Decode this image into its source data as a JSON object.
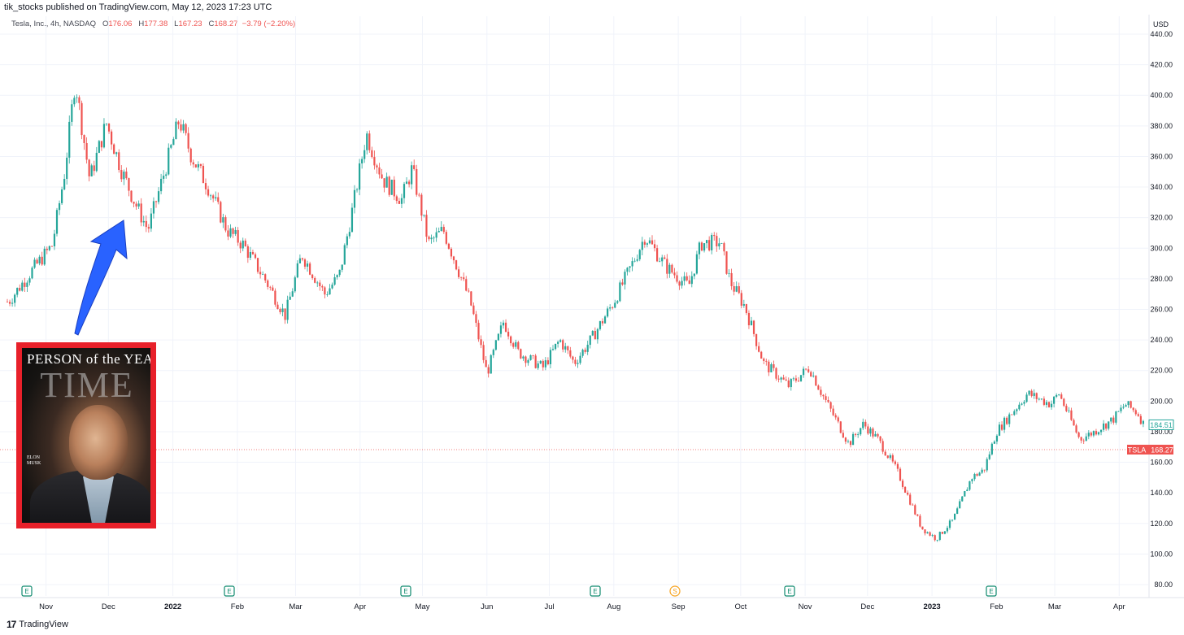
{
  "publisher": "tik_stocks published on TradingView.com, May 12, 2023 17:23 UTC",
  "symbol": {
    "name": "Tesla, Inc., 4h, NASDAQ",
    "o_label": "O",
    "o": "176.06",
    "h_label": "H",
    "h": "177.38",
    "l_label": "L",
    "l": "167.23",
    "c_label": "C",
    "c": "168.27",
    "change": "−3.79 (−2.20%)"
  },
  "currency": "USD",
  "footer": {
    "logo_mark": "17",
    "logo_name": "TradingView"
  },
  "cover": {
    "title": "PERSON of the YEAR",
    "brand": "TIME",
    "name_line1": "ELON",
    "name_line2": "MUSK"
  },
  "colors": {
    "up": "#26a69a",
    "down": "#ef5350",
    "grid": "#f0f3fa",
    "arrow": "#2962ff",
    "cover_frame": "#e8202a"
  },
  "chart_data": {
    "type": "line",
    "title": "",
    "xlabel": "",
    "ylabel": "",
    "ylim": [
      80,
      440
    ],
    "y_ticks": [
      "440.00",
      "420.00",
      "400.00",
      "380.00",
      "360.00",
      "340.00",
      "320.00",
      "300.00",
      "280.00",
      "260.00",
      "240.00",
      "220.00",
      "200.00",
      "180.00",
      "160.00",
      "140.00",
      "120.00",
      "100.00",
      "80.00"
    ],
    "x_ticks": [
      "Nov",
      "Dec",
      "2022",
      "Feb",
      "Mar",
      "Apr",
      "May",
      "Jun",
      "Jul",
      "Aug",
      "Sep",
      "Oct",
      "Nov",
      "Dec",
      "2023",
      "Feb",
      "Mar",
      "Apr"
    ],
    "series": [
      {
        "x": [
          "2021-10-14",
          "2021-10-25",
          "2021-11-04",
          "2021-11-10",
          "2021-11-15",
          "2021-11-22",
          "2021-11-30",
          "2021-12-07",
          "2021-12-13",
          "2021-12-20",
          "2022-01-04",
          "2022-01-10",
          "2022-01-18",
          "2022-01-27",
          "2022-02-04",
          "2022-02-15",
          "2022-02-24",
          "2022-03-04",
          "2022-03-15",
          "2022-03-22",
          "2022-03-29",
          "2022-04-04",
          "2022-04-12",
          "2022-04-21",
          "2022-04-26",
          "2022-05-04",
          "2022-05-11",
          "2022-05-24",
          "2022-06-01",
          "2022-06-09",
          "2022-06-16",
          "2022-06-28",
          "2022-07-06",
          "2022-07-13",
          "2022-07-21",
          "2022-08-01",
          "2022-08-10",
          "2022-08-16",
          "2022-08-26",
          "2022-09-06",
          "2022-09-12",
          "2022-09-21",
          "2022-09-26",
          "2022-10-03",
          "2022-10-12",
          "2022-10-24",
          "2022-11-03",
          "2022-11-09",
          "2022-11-22",
          "2022-11-29",
          "2022-12-06",
          "2022-12-15",
          "2022-12-27",
          "2023-01-03",
          "2023-01-11",
          "2023-01-20",
          "2023-01-26",
          "2023-02-01",
          "2023-02-16",
          "2023-02-27",
          "2023-03-03",
          "2023-03-13",
          "2023-03-20",
          "2023-03-29",
          "2023-04-04",
          "2023-04-10",
          "2023-04-13"
        ],
        "values": [
          265,
          285,
          302,
          350,
          410,
          345,
          382,
          352,
          332,
          312,
          384,
          360,
          340,
          312,
          302,
          278,
          256,
          296,
          270,
          282,
          330,
          375,
          345,
          332,
          352,
          303,
          312,
          265,
          218,
          252,
          232,
          222,
          240,
          225,
          240,
          265,
          290,
          308,
          288,
          275,
          303,
          304,
          278,
          262,
          225,
          210,
          222,
          205,
          172,
          185,
          175,
          155,
          117,
          110,
          122,
          150,
          155,
          180,
          205,
          198,
          205,
          175,
          180,
          188,
          198,
          192,
          184
        ]
      }
    ],
    "markers": {
      "last_price": "184.51",
      "current_price": "168.27",
      "current_label": "TSLA",
      "event_letters": [
        "E",
        "E",
        "E",
        "E",
        "S",
        "E",
        "E"
      ]
    }
  }
}
